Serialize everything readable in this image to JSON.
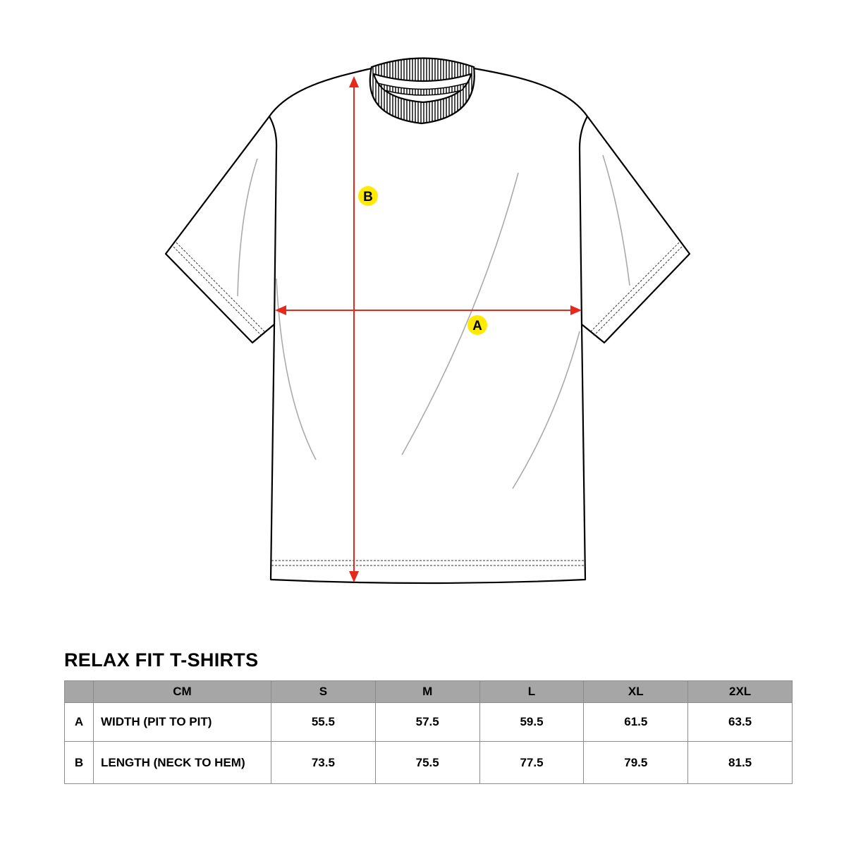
{
  "title": "RELAX FIT T-SHIRTS",
  "diagram": {
    "labels": {
      "width_marker": "A",
      "length_marker": "B"
    },
    "colors": {
      "arrow": "#e8281c",
      "marker": "#ffea00",
      "outline": "#000000",
      "header": "#a6a6a6"
    }
  },
  "table": {
    "header": [
      "",
      "CM",
      "S",
      "M",
      "L",
      "XL",
      "2XL"
    ],
    "rows": [
      {
        "key": "A",
        "label": "WIDTH (PIT TO PIT)",
        "values": [
          "55.5",
          "57.5",
          "59.5",
          "61.5",
          "63.5"
        ]
      },
      {
        "key": "B",
        "label": "LENGTH (NECK TO HEM)",
        "values": [
          "73.5",
          "75.5",
          "77.5",
          "79.5",
          "81.5"
        ]
      }
    ]
  }
}
